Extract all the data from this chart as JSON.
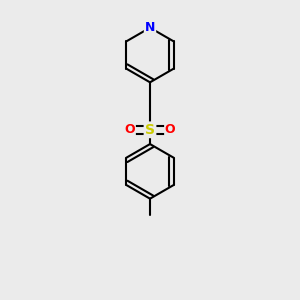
{
  "bg_color": "#ebebeb",
  "bond_color": "#000000",
  "N_color": "#0000ff",
  "S_color": "#cccc00",
  "O_color": "#ff0000",
  "bond_width": 1.5,
  "dbo": 0.018,
  "figsize": [
    3.0,
    3.0
  ],
  "dpi": 100,
  "xlim": [
    -0.35,
    0.35
  ],
  "ylim": [
    -0.62,
    0.62
  ]
}
